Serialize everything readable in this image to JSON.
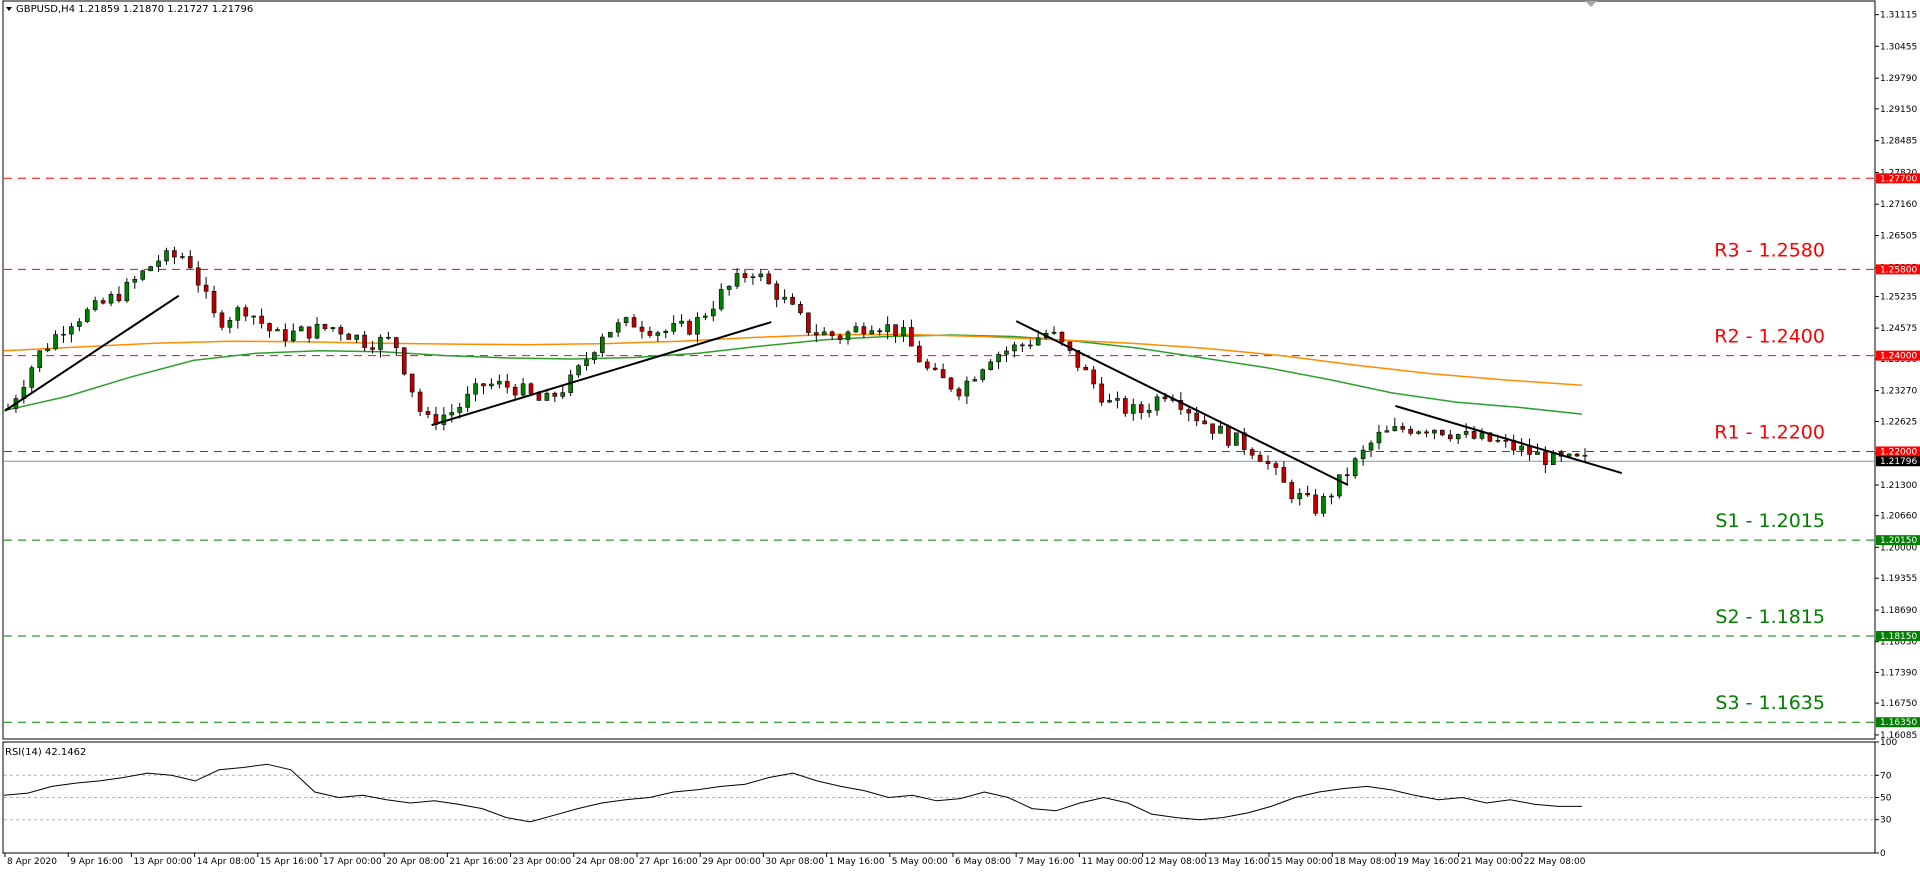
{
  "header": {
    "symbol_info": "GBPUSD,H4  1.21859 1.21870 1.21727 1.21796",
    "collapse_icon": "triangle-down-icon",
    "scroll_marker": "triangle-down-icon"
  },
  "chart_data": [
    {
      "type": "candlestick",
      "symbol": "GBPUSD",
      "timeframe": "H4",
      "ohlc_last": {
        "open": 1.21859,
        "high": 1.2187,
        "low": 1.21727,
        "close": 1.21796
      },
      "ylim": [
        1.16,
        1.314
      ],
      "y_ticks": [
        "1.31115",
        "1.30455",
        "1.29790",
        "1.29150",
        "1.28485",
        "1.27820",
        "1.27160",
        "1.26505",
        "1.25835",
        "1.25235",
        "1.24575",
        "1.23930",
        "1.23270",
        "1.22625",
        "1.21960",
        "1.21300",
        "1.20660",
        "1.20000",
        "1.19355",
        "1.18690",
        "1.18030",
        "1.17390",
        "1.16750",
        "1.16085"
      ],
      "x_ticks": [
        "8 Apr 2020",
        "9 Apr 16:00",
        "13 Apr 00:00",
        "14 Apr 08:00",
        "15 Apr 16:00",
        "17 Apr 00:00",
        "20 Apr 08:00",
        "21 Apr 16:00",
        "23 Apr 00:00",
        "24 Apr 08:00",
        "27 Apr 16:00",
        "29 Apr 00:00",
        "30 Apr 08:00",
        "1 May 16:00",
        "5 May 00:00",
        "6 May 08:00",
        "7 May 16:00",
        "11 May 00:00",
        "12 May 08:00",
        "13 May 16:00",
        "15 May 00:00",
        "18 May 08:00",
        "19 May 16:00",
        "21 May 00:00",
        "22 May 08:00"
      ],
      "price_path": [
        1.229,
        1.24,
        1.247,
        1.25,
        1.254,
        1.26,
        1.261,
        1.247,
        1.25,
        1.244,
        1.245,
        1.246,
        1.243,
        1.243,
        1.226,
        1.2285,
        1.234,
        1.2335,
        1.23,
        1.235,
        1.245,
        1.247,
        1.245,
        1.246,
        1.253,
        1.258,
        1.252,
        1.245,
        1.244,
        1.247,
        1.245,
        1.236,
        1.233,
        1.24,
        1.242,
        1.245,
        1.238,
        1.23,
        1.228,
        1.233,
        1.227,
        1.223,
        1.22,
        1.212,
        1.208,
        1.2155,
        1.223,
        1.225,
        1.225,
        1.223,
        1.222,
        1.22,
        1.218,
        1.218
      ],
      "ma_fast": {
        "name": "",
        "color": "#2ca02c",
        "values": [
          1.2285,
          1.2315,
          1.2355,
          1.239,
          1.2405,
          1.241,
          1.2408,
          1.24,
          1.2395,
          1.2393,
          1.2396,
          1.2405,
          1.242,
          1.2433,
          1.244,
          1.2443,
          1.244,
          1.243,
          1.2415,
          1.2395,
          1.2375,
          1.235,
          1.2322,
          1.2303,
          1.2292,
          1.2278
        ]
      },
      "ma_slow": {
        "name": "",
        "color": "#ff8c00",
        "values": [
          1.241,
          1.2418,
          1.2426,
          1.243,
          1.2429,
          1.2426,
          1.2424,
          1.2423,
          1.2425,
          1.243,
          1.2438,
          1.2444,
          1.2444,
          1.244,
          1.2433,
          1.2426,
          1.2415,
          1.24,
          1.238,
          1.2362,
          1.2349,
          1.2338
        ]
      },
      "levels": [
        {
          "value": 1.277,
          "tag": "1.27700",
          "label": "",
          "color": "#ff0000",
          "badge": "#ff0000"
        },
        {
          "value": 1.258,
          "tag": "1.25800",
          "label": "R3 - 1.2580",
          "color": "#ff0000",
          "badge": "#ff0000"
        },
        {
          "value": 1.24,
          "tag": "1.24000",
          "label": "R2 - 1.2400",
          "color": "#ff0000",
          "badge": "#ff0000"
        },
        {
          "value": 1.22,
          "tag": "1.22000",
          "label": "R1 - 1.2200",
          "color": "#ff0000",
          "badge": "#ff0000"
        },
        {
          "value": 1.2015,
          "tag": "1.20150",
          "label": "S1 - 1.2015",
          "color": "#008000",
          "badge": "#008000"
        },
        {
          "value": 1.1815,
          "tag": "1.18150",
          "label": "S2 - 1.1815",
          "color": "#008000",
          "badge": "#008000"
        },
        {
          "value": 1.1635,
          "tag": "1.16350",
          "label": "S3 - 1.1635",
          "color": "#008000",
          "badge": "#008000"
        }
      ],
      "current_price": {
        "value": 1.21796,
        "tag": "1.21796",
        "line_color": "#7f9fa8",
        "badge": "#000000"
      },
      "trendlines": [
        {
          "from": {
            "date": "8 Apr 2020",
            "price": 1.2285
          },
          "to": {
            "date": "14 Apr 00:00",
            "price": 1.2525
          }
        },
        {
          "from": {
            "date": "21 Apr 08:00",
            "price": 1.2255
          },
          "to": {
            "date": "30 Apr 12:00",
            "price": 1.247
          }
        },
        {
          "from": {
            "date": "7 May 16:00",
            "price": 1.2472
          },
          "to": {
            "date": "18 May 16:00",
            "price": 1.213
          }
        },
        {
          "from": {
            "date": "19 May 16:00",
            "price": 1.2295
          },
          "to": {
            "date": "25 May 08:00",
            "price": 1.2155
          }
        }
      ]
    },
    {
      "type": "line",
      "indicator": "RSI(14) 42.1462",
      "ylim": [
        0,
        100
      ],
      "y_ticks": [
        "100",
        "70",
        "50",
        "30",
        "0"
      ],
      "levels": [
        70,
        50,
        30
      ],
      "values": [
        52,
        54,
        60,
        63,
        65,
        68,
        72,
        70,
        65,
        75,
        77,
        80,
        75,
        55,
        50,
        52,
        48,
        45,
        47,
        44,
        40,
        32,
        28,
        34,
        40,
        45,
        48,
        50,
        55,
        57,
        60,
        62,
        68,
        72,
        65,
        60,
        56,
        50,
        52,
        47,
        49,
        55,
        50,
        40,
        38,
        45,
        50,
        45,
        35,
        32,
        30,
        32,
        36,
        42,
        50,
        55,
        58,
        60,
        57,
        52,
        48,
        50,
        45,
        48,
        44,
        42,
        42
      ]
    }
  ]
}
